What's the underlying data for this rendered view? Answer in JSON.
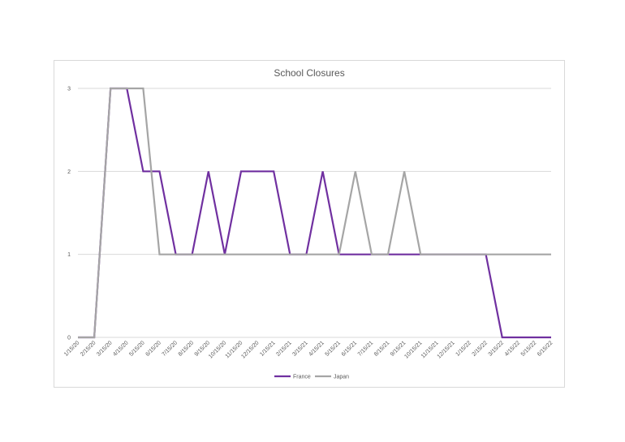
{
  "chart_data": {
    "type": "line",
    "title": "School Closures",
    "xlabel": "",
    "ylabel": "",
    "ylim": [
      0,
      3
    ],
    "yticks": [
      "0",
      "1",
      "2",
      "3"
    ],
    "grid": true,
    "legend_position": "bottom",
    "categories": [
      "1/15/20",
      "2/15/20",
      "3/15/20",
      "4/15/20",
      "5/15/20",
      "6/15/20",
      "7/15/20",
      "8/15/20",
      "9/15/20",
      "10/15/20",
      "11/15/20",
      "12/15/20",
      "1/15/21",
      "2/15/21",
      "3/15/21",
      "4/15/21",
      "5/15/21",
      "6/15/21",
      "7/15/21",
      "8/15/21",
      "9/15/21",
      "10/15/21",
      "11/15/21",
      "12/15/21",
      "1/15/22",
      "2/15/22",
      "3/15/22",
      "4/15/22",
      "5/15/22",
      "6/15/22"
    ],
    "series": [
      {
        "name": "France",
        "color": "#7030a0",
        "values": [
          0,
          0,
          3,
          3,
          2,
          2,
          1,
          1,
          2,
          1,
          2,
          2,
          2,
          1,
          1,
          2,
          1,
          1,
          1,
          1,
          1,
          1,
          1,
          1,
          1,
          1,
          0,
          0,
          0,
          0
        ]
      },
      {
        "name": "Japan",
        "color": "#a5a5a5",
        "values": [
          0,
          0,
          3,
          3,
          3,
          1,
          1,
          1,
          1,
          1,
          1,
          1,
          1,
          1,
          1,
          1,
          1,
          2,
          1,
          1,
          2,
          1,
          1,
          1,
          1,
          1,
          1,
          1,
          1,
          1
        ]
      }
    ]
  }
}
